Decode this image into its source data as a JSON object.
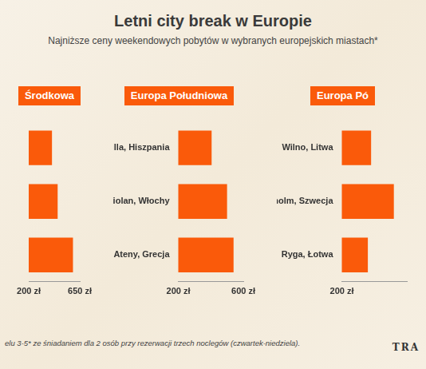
{
  "header": {
    "title": "Letni city break w Europie",
    "subtitle": "Najniższe ceny weekendowych pobytów w wybranych europejskich miastach*"
  },
  "chart_data": [
    {
      "type": "bar",
      "title": "Środkowa",
      "orientation": "horizontal",
      "grid": false,
      "categories": [
        null,
        null,
        null
      ],
      "values": [
        405,
        455,
        590
      ],
      "color": "#fa5a0a",
      "xlim": [
        200,
        650
      ],
      "xticks": [
        {
          "value": 200,
          "label": "200 zł"
        },
        {
          "value": 650,
          "label": "650 zł"
        }
      ]
    },
    {
      "type": "bar",
      "title": "Europa Południowa",
      "orientation": "horizontal",
      "grid": false,
      "categories": [
        "Sewilla, Hiszpania",
        "Mediolan, Włochy",
        "Ateny, Grecja"
      ],
      "values": [
        405,
        500,
        540
      ],
      "color": "#fa5a0a",
      "xlim": [
        200,
        600
      ],
      "xticks": [
        {
          "value": 200,
          "label": "200 zł"
        },
        {
          "value": 600,
          "label": "600 zł"
        }
      ]
    },
    {
      "type": "bar",
      "title": "Europa Pó",
      "orientation": "horizontal",
      "grid": false,
      "categories": [
        "Wilno, Litwa",
        "Sztokholm, Szwecja",
        "Ryga, Łotwa"
      ],
      "values": [
        380,
        520,
        360
      ],
      "color": "#fa5a0a",
      "xlim": [
        200,
        600
      ],
      "xticks": [
        {
          "value": 200,
          "label": "200 zł"
        }
      ]
    }
  ],
  "footnote": "elu 3-5* ze śniadaniem dla 2 osób przy rezerwacji trzech noclegów (czwartek-niedziela).",
  "brand": "TRA"
}
